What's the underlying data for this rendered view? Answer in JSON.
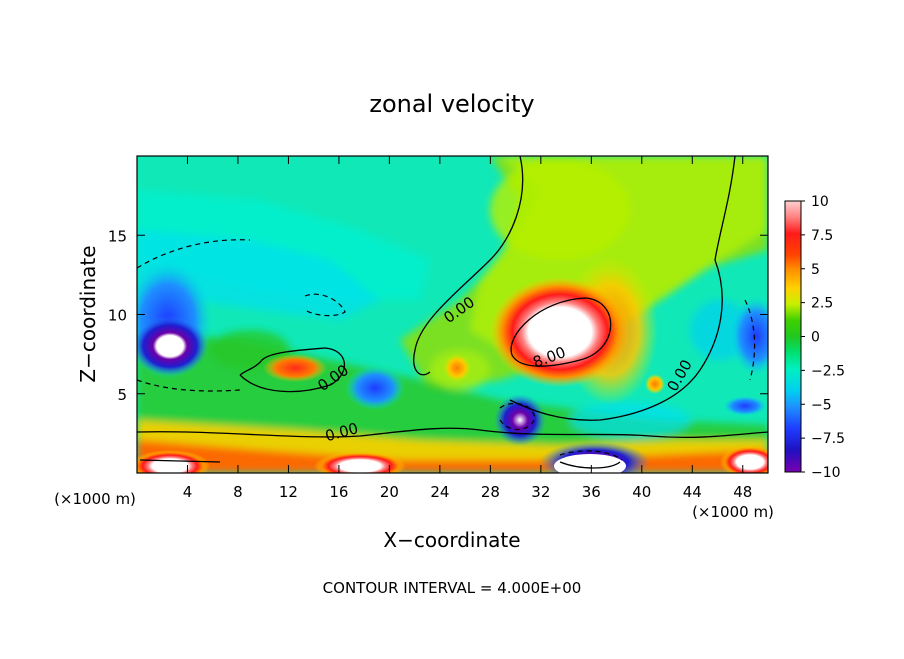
{
  "chart_data": {
    "type": "heatmap",
    "title": "zonal velocity",
    "xlabel": "X−coordinate",
    "ylabel": "Z−coordinate",
    "x_unit_left": "(×1000 m)",
    "x_unit_right": "(×1000 m)",
    "xlim": [
      0,
      50
    ],
    "ylim": [
      0,
      20
    ],
    "x_ticks": [
      4,
      8,
      12,
      16,
      20,
      24,
      28,
      32,
      36,
      40,
      44,
      48
    ],
    "y_ticks": [
      5,
      10,
      15
    ],
    "colorbar": {
      "ticks": [
        "10",
        "7.5",
        "5",
        "2.5",
        "0",
        "−2.5",
        "−5",
        "−7.5",
        "−10"
      ],
      "values": [
        10,
        7.5,
        5,
        2.5,
        0,
        -2.5,
        -5,
        -7.5,
        -10
      ]
    },
    "contour_labels": [
      "0.00",
      "0.00",
      "0.00",
      "8.00",
      "0.00"
    ],
    "footer": "CONTOUR INTERVAL = 4.000E+00",
    "features": [
      {
        "x": 2.5,
        "z": 8.0,
        "value": -10
      },
      {
        "x": 30.5,
        "z": 3.3,
        "value": -10
      },
      {
        "x": 33.5,
        "z": 9.0,
        "value": 10
      },
      {
        "x": 13.5,
        "z": 6.5,
        "value": 6
      },
      {
        "x": 36.0,
        "z": 1.0,
        "value": -10
      },
      {
        "x": 20.0,
        "z": 5.5,
        "value": -6
      },
      {
        "x": 49.5,
        "z": 9.0,
        "value": -8
      },
      {
        "x": 3.0,
        "z": 0.5,
        "value": 10
      },
      {
        "x": 10.0,
        "z": 1.5,
        "value": 7.5
      },
      {
        "x": 47.0,
        "z": 1.0,
        "value": 8
      },
      {
        "x": 47.0,
        "z": 4.0,
        "value": -8
      },
      {
        "x": 38.5,
        "z": 12.0,
        "value": 5
      }
    ]
  }
}
